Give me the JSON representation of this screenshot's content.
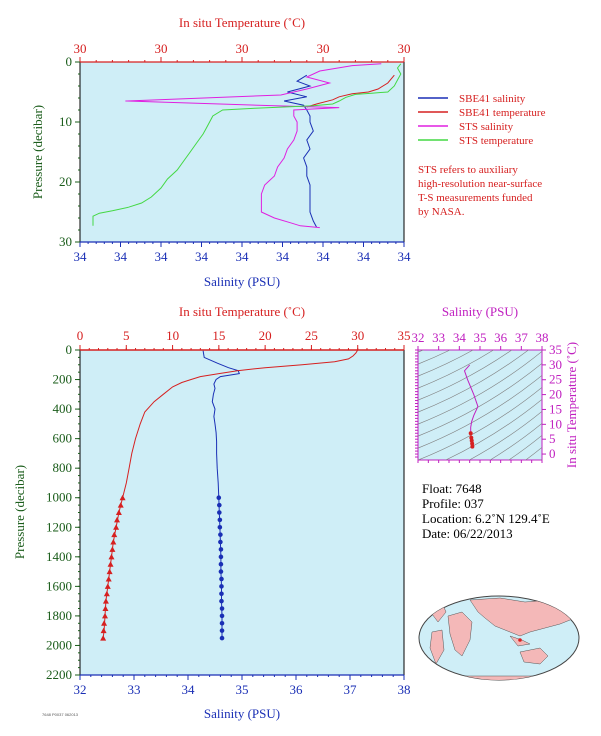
{
  "chart_data": [
    {
      "type": "line",
      "title": "",
      "top_axis_label": "In situ Temperature (˚C)",
      "top_ticks": [
        "30",
        "30",
        "30",
        "30",
        "30"
      ],
      "bottom_axis_label": "Salinity (PSU)",
      "bottom_ticks": [
        "34",
        "34",
        "34",
        "34",
        "34",
        "34",
        "34",
        "34",
        "34"
      ],
      "y_axis_label": "Pressure (decibar)",
      "y_ticks": [
        "0",
        "10",
        "20",
        "30"
      ],
      "ylim": [
        30,
        0
      ],
      "grid": false,
      "background": "#cfeef7",
      "legend": "right",
      "series": [
        {
          "name": "SBE41 salinity",
          "color": "#1a2fb5",
          "points": [
            [
              0.7,
              2.2
            ],
            [
              0.67,
              3.2
            ],
            [
              0.71,
              4.0
            ],
            [
              0.64,
              5.0
            ],
            [
              0.7,
              5.8
            ],
            [
              0.63,
              6.5
            ],
            [
              0.69,
              7.2
            ],
            [
              0.7,
              8.0
            ],
            [
              0.71,
              9.0
            ],
            [
              0.71,
              10.0
            ],
            [
              0.72,
              11.5
            ],
            [
              0.7,
              13.0
            ],
            [
              0.71,
              14.5
            ],
            [
              0.69,
              16.0
            ],
            [
              0.7,
              17.5
            ],
            [
              0.7,
              19.0
            ],
            [
              0.71,
              20.5
            ],
            [
              0.71,
              22.0
            ],
            [
              0.71,
              23.5
            ],
            [
              0.71,
              25.0
            ],
            [
              0.72,
              26.5
            ],
            [
              0.73,
              27.5
            ]
          ]
        },
        {
          "name": "SBE41 temperature",
          "color": "#d62020",
          "points": [
            [
              0.97,
              2.2
            ],
            [
              0.95,
              3.5
            ],
            [
              0.92,
              4.5
            ],
            [
              0.89,
              5.0
            ],
            [
              0.84,
              5.3
            ],
            [
              0.8,
              5.8
            ],
            [
              0.78,
              6.3
            ],
            [
              0.73,
              7.0
            ],
            [
              0.7,
              7.5
            ]
          ]
        },
        {
          "name": "STS salinity",
          "color": "#e020e0",
          "points": [
            [
              0.93,
              0.3
            ],
            [
              0.84,
              0.6
            ],
            [
              0.74,
              1.5
            ],
            [
              0.7,
              2.5
            ],
            [
              0.77,
              3.5
            ],
            [
              0.7,
              4.5
            ],
            [
              0.62,
              5.5
            ],
            [
              0.14,
              6.5
            ],
            [
              0.55,
              7.2
            ],
            [
              0.8,
              7.6
            ],
            [
              0.66,
              8.0
            ],
            [
              0.66,
              9.0
            ],
            [
              0.67,
              10.0
            ],
            [
              0.67,
              11.5
            ],
            [
              0.66,
              13.0
            ],
            [
              0.64,
              14.5
            ],
            [
              0.63,
              16.0
            ],
            [
              0.61,
              17.5
            ],
            [
              0.6,
              19.0
            ],
            [
              0.57,
              20.5
            ],
            [
              0.56,
              22.0
            ],
            [
              0.56,
              23.5
            ],
            [
              0.56,
              25.0
            ],
            [
              0.6,
              26.0
            ],
            [
              0.65,
              26.8
            ],
            [
              0.68,
              27.3
            ],
            [
              0.74,
              27.6
            ]
          ]
        },
        {
          "name": "STS temperature",
          "color": "#44d844",
          "points": [
            [
              0.99,
              0.3
            ],
            [
              0.98,
              1.0
            ],
            [
              0.99,
              2.0
            ],
            [
              0.98,
              3.0
            ],
            [
              0.97,
              4.0
            ],
            [
              0.95,
              5.0
            ],
            [
              0.9,
              5.2
            ],
            [
              0.85,
              5.4
            ],
            [
              0.82,
              5.9
            ],
            [
              0.8,
              6.5
            ],
            [
              0.78,
              7.0
            ],
            [
              0.72,
              7.3
            ],
            [
              0.54,
              7.7
            ],
            [
              0.44,
              8.0
            ],
            [
              0.41,
              9.0
            ],
            [
              0.4,
              10.0
            ],
            [
              0.39,
              11.0
            ],
            [
              0.38,
              12.0
            ],
            [
              0.36,
              13.5
            ],
            [
              0.34,
              15.0
            ],
            [
              0.32,
              16.5
            ],
            [
              0.3,
              18.0
            ],
            [
              0.27,
              19.5
            ],
            [
              0.25,
              21.0
            ],
            [
              0.22,
              22.5
            ],
            [
              0.19,
              23.5
            ],
            [
              0.15,
              24.2
            ],
            [
              0.1,
              24.8
            ],
            [
              0.06,
              25.2
            ],
            [
              0.04,
              25.7
            ],
            [
              0.04,
              27.3
            ]
          ]
        }
      ],
      "note": "STS refers to auxiliary high-resolution near-surface T-S measurements funded by NASA.",
      "note_lines": [
        "STS refers to auxiliary",
        "high-resolution near-surface",
        "T-S measurements funded",
        "by NASA."
      ]
    },
    {
      "type": "line",
      "title": "",
      "top_axis_label": "In situ Temperature (˚C)",
      "top_ticks": [
        "0",
        "5",
        "10",
        "15",
        "20",
        "25",
        "30",
        "35"
      ],
      "xlim_top": [
        0,
        35
      ],
      "bottom_axis_label": "Salinity (PSU)",
      "bottom_ticks": [
        "32",
        "33",
        "34",
        "35",
        "36",
        "37",
        "38"
      ],
      "xlim": [
        32,
        38
      ],
      "y_axis_label": "Pressure (decibar)",
      "y_ticks": [
        "0",
        "200",
        "400",
        "600",
        "800",
        "1000",
        "1200",
        "1400",
        "1600",
        "1800",
        "2000",
        "2200"
      ],
      "ylim": [
        2200,
        0
      ],
      "grid": false,
      "background": "#cfeef7",
      "series": [
        {
          "name": "Salinity",
          "axis": "bottom",
          "color": "#1a2fb5",
          "points": [
            [
              34.28,
              5
            ],
            [
              34.3,
              50
            ],
            [
              34.55,
              90
            ],
            [
              34.75,
              120
            ],
            [
              34.93,
              140
            ],
            [
              34.95,
              160
            ],
            [
              34.6,
              180
            ],
            [
              34.52,
              200
            ],
            [
              34.48,
              230
            ],
            [
              34.5,
              260
            ],
            [
              34.47,
              300
            ],
            [
              34.45,
              350
            ],
            [
              34.5,
              400
            ],
            [
              34.48,
              450
            ],
            [
              34.5,
              500
            ],
            [
              34.52,
              560
            ],
            [
              34.53,
              620
            ],
            [
              34.53,
              700
            ],
            [
              34.54,
              800
            ],
            [
              34.56,
              900
            ],
            [
              34.57,
              1000
            ],
            [
              34.58,
              1100
            ],
            [
              34.59,
              1200
            ],
            [
              34.6,
              1300
            ],
            [
              34.61,
              1400
            ],
            [
              34.61,
              1500
            ],
            [
              34.62,
              1600
            ],
            [
              34.62,
              1700
            ],
            [
              34.63,
              1800
            ],
            [
              34.63,
              1900
            ],
            [
              34.63,
              1950
            ]
          ],
          "markers": [
            [
              34.57,
              1000
            ],
            [
              34.58,
              1050
            ],
            [
              34.58,
              1100
            ],
            [
              34.59,
              1150
            ],
            [
              34.59,
              1200
            ],
            [
              34.6,
              1250
            ],
            [
              34.6,
              1300
            ],
            [
              34.61,
              1350
            ],
            [
              34.61,
              1400
            ],
            [
              34.61,
              1450
            ],
            [
              34.61,
              1500
            ],
            [
              34.62,
              1550
            ],
            [
              34.62,
              1600
            ],
            [
              34.62,
              1650
            ],
            [
              34.62,
              1700
            ],
            [
              34.63,
              1750
            ],
            [
              34.63,
              1800
            ],
            [
              34.63,
              1850
            ],
            [
              34.63,
              1900
            ],
            [
              34.63,
              1950
            ]
          ]
        },
        {
          "name": "Temperature",
          "axis": "top",
          "color": "#d62020",
          "points": [
            [
              30.0,
              0
            ],
            [
              29.8,
              20
            ],
            [
              29.5,
              40
            ],
            [
              29.0,
              60
            ],
            [
              27.5,
              80
            ],
            [
              24.0,
              100
            ],
            [
              20.0,
              120
            ],
            [
              17.0,
              140
            ],
            [
              15.0,
              160
            ],
            [
              13.0,
              180
            ],
            [
              12.0,
              200
            ],
            [
              11.0,
              220
            ],
            [
              10.0,
              250
            ],
            [
              9.0,
              300
            ],
            [
              8.0,
              350
            ],
            [
              7.0,
              420
            ],
            [
              6.5,
              500
            ],
            [
              6.0,
              600
            ],
            [
              5.6,
              700
            ],
            [
              5.3,
              800
            ],
            [
              5.0,
              900
            ],
            [
              4.6,
              1000
            ],
            [
              4.2,
              1100
            ],
            [
              3.9,
              1200
            ],
            [
              3.6,
              1300
            ],
            [
              3.4,
              1400
            ],
            [
              3.2,
              1500
            ],
            [
              3.0,
              1600
            ],
            [
              2.8,
              1700
            ],
            [
              2.7,
              1800
            ],
            [
              2.6,
              1900
            ],
            [
              2.5,
              1950
            ]
          ],
          "markers": [
            [
              4.6,
              1000
            ],
            [
              4.4,
              1050
            ],
            [
              4.2,
              1100
            ],
            [
              4.0,
              1150
            ],
            [
              3.9,
              1200
            ],
            [
              3.7,
              1250
            ],
            [
              3.6,
              1300
            ],
            [
              3.5,
              1350
            ],
            [
              3.4,
              1400
            ],
            [
              3.3,
              1450
            ],
            [
              3.2,
              1500
            ],
            [
              3.1,
              1550
            ],
            [
              3.0,
              1600
            ],
            [
              2.9,
              1650
            ],
            [
              2.8,
              1700
            ],
            [
              2.75,
              1750
            ],
            [
              2.7,
              1800
            ],
            [
              2.6,
              1850
            ],
            [
              2.55,
              1900
            ],
            [
              2.5,
              1950
            ]
          ]
        }
      ]
    },
    {
      "type": "scatter",
      "title": "",
      "top_axis_label": "Salinity (PSU)",
      "top_ticks": [
        "32",
        "33",
        "34",
        "35",
        "36",
        "37",
        "38"
      ],
      "xlim": [
        32,
        38
      ],
      "right_axis_label": "In situ Temperature (˚C)",
      "right_ticks": [
        "0",
        "5",
        "10",
        "15",
        "20",
        "25",
        "30",
        "35"
      ],
      "ylim": [
        -2,
        35
      ],
      "background": "#cfeef7",
      "contours": "density isopleths (grey)",
      "points": [
        [
          34.5,
          30.0
        ],
        [
          34.25,
          28.0
        ],
        [
          34.4,
          25.0
        ],
        [
          34.7,
          20.0
        ],
        [
          34.9,
          16.0
        ],
        [
          34.7,
          13.0
        ],
        [
          34.6,
          11.0
        ],
        [
          34.55,
          9.0
        ],
        [
          34.55,
          7.0
        ],
        [
          34.58,
          5.5
        ],
        [
          34.6,
          4.5
        ],
        [
          34.62,
          3.5
        ],
        [
          34.63,
          2.5
        ]
      ]
    }
  ],
  "float_info": {
    "float_line": "Float:  7648",
    "profile_line": "Profile:  037",
    "location_line": "Location:  6.2˚N  129.4˚E",
    "date_line": "Date:  06/22/2013"
  },
  "colors": {
    "red": "#d62020",
    "blue": "#1a2fb5",
    "magenta": "#c020c0",
    "green_axis": "#1a5c1a",
    "plot_bg": "#cfeef7",
    "land": "#f4b8b8",
    "ocean": "#cfeef7"
  },
  "footer": "7648 P0037 062013"
}
